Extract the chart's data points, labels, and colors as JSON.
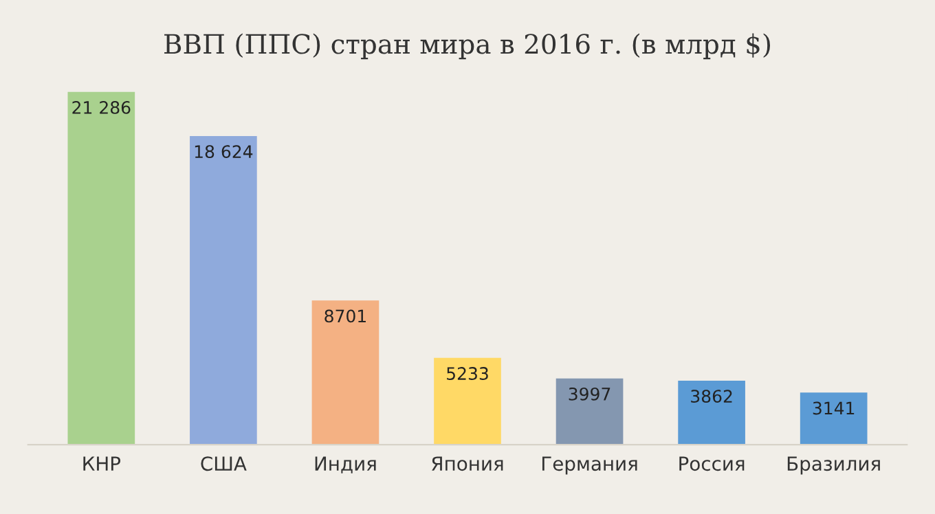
{
  "chart_data": {
    "type": "bar",
    "title": "ВВП (ППС) стран мира в 2016 г. (в млрд $)",
    "categories": [
      "КНР",
      "США",
      "Индия",
      "Япония",
      "Германия",
      "Россия",
      "Бразилия"
    ],
    "values": [
      21286,
      18624,
      8701,
      5233,
      3997,
      3862,
      3141
    ],
    "value_labels": [
      "21 286",
      "18 624",
      "8701",
      "5233",
      "3997",
      "3862",
      "3141"
    ],
    "colors": [
      "#a9d18e",
      "#8faadc",
      "#f4b183",
      "#ffd966",
      "#8497b0",
      "#5b9bd5",
      "#5b9bd5"
    ],
    "legend": false,
    "grid": false
  }
}
